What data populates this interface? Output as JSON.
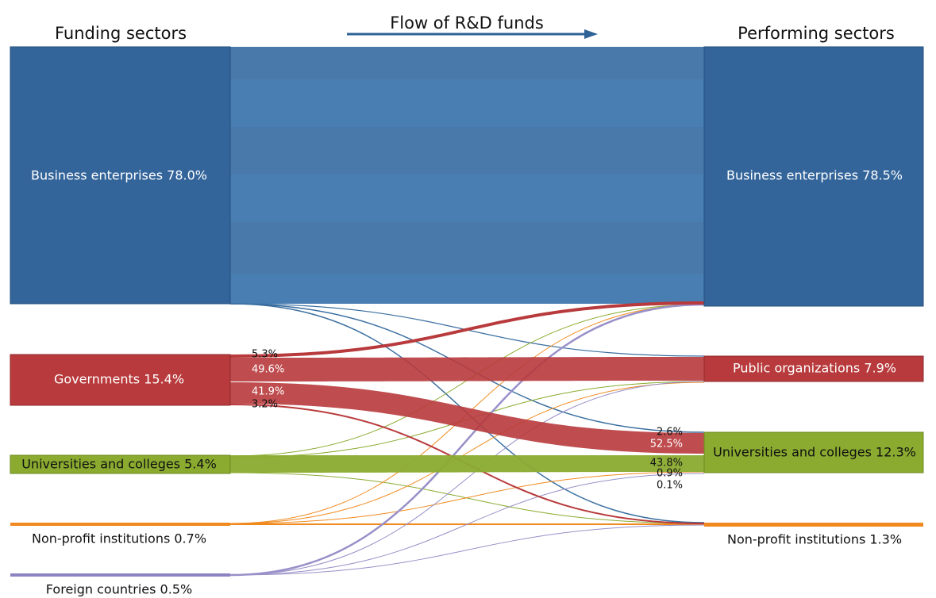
{
  "header": {
    "left": "Funding sectors",
    "center": "Flow of R&D funds",
    "right": "Performing sectors"
  },
  "left_nodes": [
    "Business enterprises 78.0%",
    "Governments 15.4%",
    "Universities and colleges 5.4%",
    "Non-profit institutions 0.7%",
    "Foreign countries 0.5%"
  ],
  "right_nodes": [
    "Business enterprises 78.5%",
    "Public organizations 7.9%",
    "Universities and colleges 12.3%",
    "Non-profit institutions 1.3%"
  ],
  "flow_labels": {
    "government": [
      "5.3%",
      "49.6%",
      "41.9%",
      "3.2%"
    ],
    "universities": [
      "2.6%",
      "52.5%",
      "43.8%",
      "0.9%",
      "0.1%"
    ]
  }
}
